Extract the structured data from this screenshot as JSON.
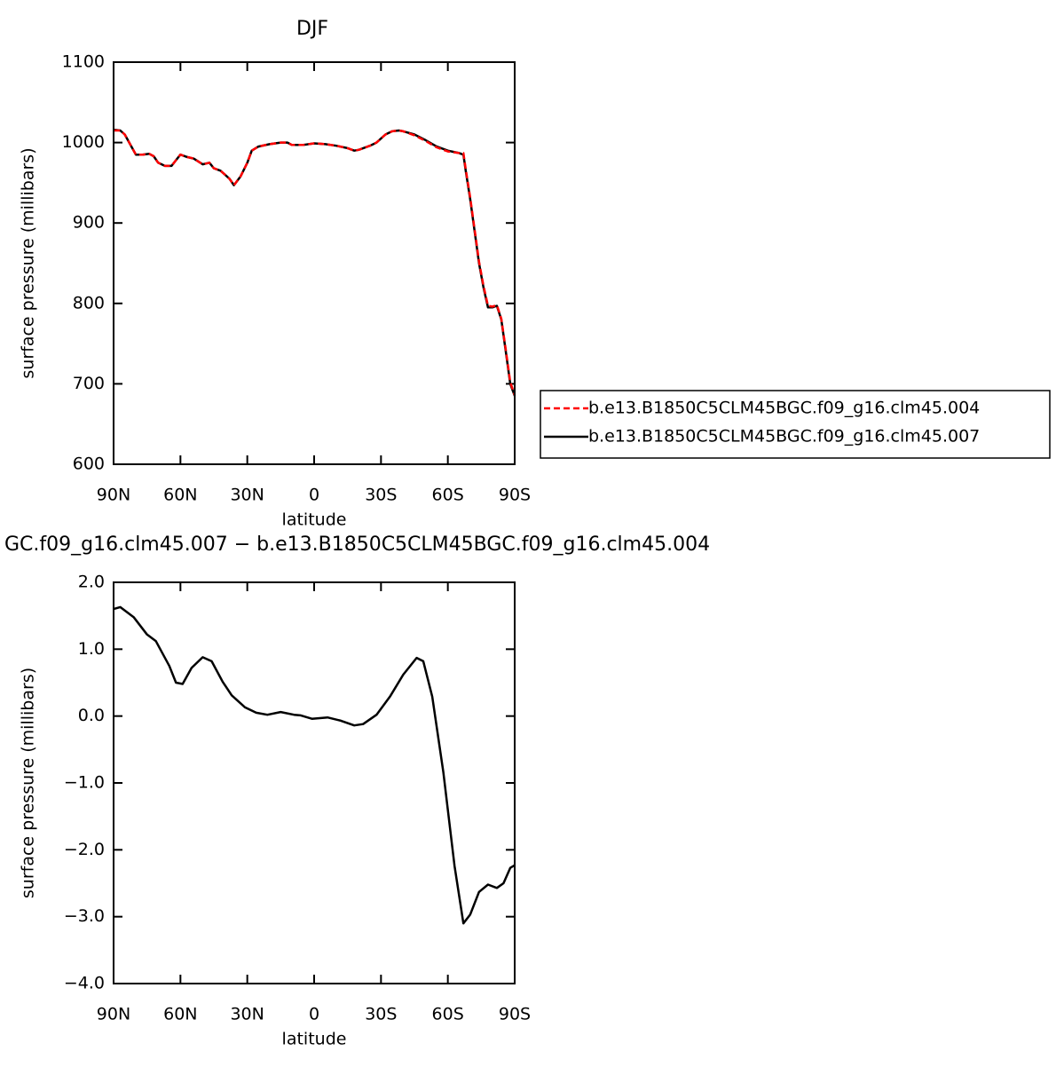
{
  "chart_data": [
    {
      "type": "line",
      "title": "DJF",
      "xlabel": "latitude",
      "ylabel": "surface pressure (millibars)",
      "xlim": [
        90,
        -90
      ],
      "ylim": [
        600,
        1100
      ],
      "xticks": [
        {
          "value": 90,
          "label": "90N"
        },
        {
          "value": 60,
          "label": "60N"
        },
        {
          "value": 30,
          "label": "30N"
        },
        0,
        {
          "value": -30,
          "label": "30S"
        },
        {
          "value": -60,
          "label": "60S"
        },
        {
          "value": -90,
          "label": "90S"
        }
      ],
      "yticks": [
        600,
        700,
        800,
        900,
        1000,
        1100
      ],
      "x": [
        90,
        87,
        85,
        82,
        80,
        77,
        74,
        72,
        70,
        67,
        64,
        62,
        60,
        57,
        54,
        50,
        47,
        45,
        42,
        40,
        38,
        36,
        33,
        30,
        28,
        25,
        20,
        15,
        12,
        10,
        5,
        0,
        -5,
        -10,
        -15,
        -18,
        -20,
        -25,
        -28,
        -32,
        -35,
        -38,
        -40,
        -45,
        -50,
        -55,
        -60,
        -65,
        -67,
        -68,
        -70,
        -72,
        -74,
        -76,
        -78,
        -80,
        -82,
        -84,
        -86,
        -88,
        -90
      ],
      "series": [
        {
          "name": "b.e13.B1850C5CLM45BGC.f09_g16.clm45.004",
          "color": "#ff0000",
          "dashed": true,
          "values": [
            1015,
            1015,
            1010,
            995,
            985,
            985,
            986,
            983,
            975,
            971,
            971,
            978,
            985,
            982,
            980,
            973,
            975,
            968,
            965,
            960,
            955,
            947,
            958,
            975,
            990,
            995,
            998,
            1000,
            1000,
            997,
            997,
            999,
            998,
            996,
            993,
            990,
            991,
            996,
            1000,
            1010,
            1014,
            1015,
            1014,
            1009,
            1002,
            994,
            989,
            987,
            987,
            967,
            932,
            892,
            852,
            822,
            797,
            796,
            798,
            781,
            742,
            702,
            686
          ]
        },
        {
          "name": "b.e13.B1850C5CLM45BGC.f09_g16.clm45.007",
          "color": "#000000",
          "dashed": false,
          "values": [
            1016,
            1015,
            1010,
            995,
            985,
            985,
            986,
            983,
            975,
            971,
            971,
            978,
            985,
            982,
            980,
            973,
            975,
            968,
            965,
            960,
            955,
            947,
            958,
            975,
            990,
            995,
            998,
            1000,
            1000,
            997,
            997,
            999,
            998,
            996,
            993,
            990,
            991,
            996,
            1000,
            1010,
            1014,
            1015,
            1014,
            1010,
            1003,
            995,
            990,
            987,
            985,
            965,
            930,
            890,
            850,
            820,
            795,
            795,
            797,
            780,
            740,
            700,
            685
          ]
        }
      ]
    },
    {
      "type": "line",
      "title": "GC.f09_g16.clm45.007 − b.e13.B1850C5CLM45BGC.f09_g16.clm45.004",
      "xlabel": "latitude",
      "ylabel": "surface pressure (millibars)",
      "xlim": [
        90,
        -90
      ],
      "ylim": [
        -4,
        2
      ],
      "xticks": [
        {
          "value": 90,
          "label": "90N"
        },
        {
          "value": 60,
          "label": "60N"
        },
        {
          "value": 30,
          "label": "30N"
        },
        0,
        {
          "value": -30,
          "label": "30S"
        },
        {
          "value": -60,
          "label": "60S"
        },
        {
          "value": -90,
          "label": "90S"
        }
      ],
      "yticks": [
        {
          "value": -4,
          "label": "−4.0"
        },
        {
          "value": -3,
          "label": "−3.0"
        },
        {
          "value": -2,
          "label": "−2.0"
        },
        {
          "value": -1,
          "label": "−1.0"
        },
        {
          "value": 0,
          "label": "0.0"
        },
        {
          "value": 1,
          "label": "1.0"
        },
        {
          "value": 2,
          "label": "2.0"
        }
      ],
      "x": [
        90,
        87,
        81,
        75,
        71,
        65,
        62,
        59,
        55,
        50,
        46,
        41,
        37,
        31,
        26,
        21,
        15,
        9,
        6,
        1,
        -6,
        -12,
        -18,
        -22,
        -28,
        -34,
        -40,
        -46,
        -49,
        -53,
        -58,
        -63,
        -67,
        -70,
        -74,
        -78,
        -82,
        -85,
        -88,
        -90
      ],
      "series": [
        {
          "color": "#000000",
          "dashed": false,
          "values": [
            1.6,
            1.63,
            1.48,
            1.22,
            1.12,
            0.75,
            0.5,
            0.48,
            0.72,
            0.88,
            0.82,
            0.51,
            0.31,
            0.13,
            0.05,
            0.02,
            0.06,
            0.02,
            0.01,
            -0.04,
            -0.02,
            -0.07,
            -0.14,
            -0.12,
            0.02,
            0.29,
            0.62,
            0.87,
            0.82,
            0.29,
            -0.84,
            -2.24,
            -3.1,
            -2.97,
            -2.63,
            -2.52,
            -2.57,
            -2.5,
            -2.27,
            -2.23
          ]
        }
      ]
    }
  ]
}
